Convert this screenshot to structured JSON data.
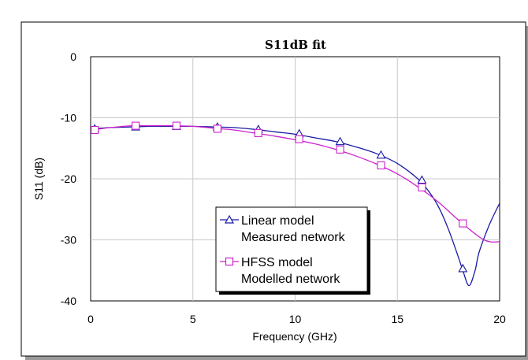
{
  "chart_data": {
    "type": "line",
    "title": "S11dB fit",
    "xlabel": "Frequency (GHz)",
    "ylabel": "S11 (dB)",
    "xlim": [
      0,
      20
    ],
    "ylim": [
      -40,
      0
    ],
    "x_ticks": [
      "0",
      "5",
      "10",
      "15",
      "20"
    ],
    "y_ticks": [
      "0",
      "-10",
      "-20",
      "-30",
      "-40"
    ],
    "grid": true,
    "legend_position": "bottom-center",
    "series": [
      {
        "name": "Linear model",
        "subname": "Measured network",
        "color": "#1a1aa6",
        "marker": "triangle",
        "x": [
          0,
          0.5,
          1,
          2,
          3,
          4,
          5,
          6,
          7,
          8,
          9,
          10,
          11,
          12,
          13,
          14,
          15,
          16,
          16.5,
          17,
          17.5,
          18,
          18.2,
          18.5,
          18.8,
          19,
          19.5,
          20
        ],
        "y": [
          -11.8,
          -11.7,
          -11.6,
          -11.5,
          -11.4,
          -11.4,
          -11.4,
          -11.5,
          -11.6,
          -11.9,
          -12.3,
          -12.7,
          -13.3,
          -13.9,
          -14.8,
          -15.9,
          -17.5,
          -20.0,
          -21.9,
          -24.5,
          -28.3,
          -33.0,
          -35.0,
          -37.5,
          -35.0,
          -32.0,
          -27.5,
          -24.0
        ],
        "marker_x": [
          0.2,
          2.2,
          4.2,
          6.2,
          8.2,
          10.2,
          12.2,
          14.2,
          16.2,
          18.2
        ],
        "marker_y": [
          -11.8,
          -11.5,
          -11.4,
          -11.5,
          -11.9,
          -12.6,
          -13.9,
          -16.1,
          -20.2,
          -34.7
        ]
      },
      {
        "name": "HFSS model",
        "subname": "Modelled network",
        "color": "#cc22cc",
        "marker": "square",
        "x": [
          0,
          0.5,
          1,
          2,
          3,
          4,
          5,
          6,
          7,
          8,
          9,
          10,
          11,
          12,
          13,
          14,
          15,
          16,
          17,
          18,
          19,
          19.5,
          20
        ],
        "y": [
          -12.1,
          -11.8,
          -11.6,
          -11.3,
          -11.3,
          -11.3,
          -11.4,
          -11.7,
          -12.0,
          -12.5,
          -13.0,
          -13.6,
          -14.3,
          -15.2,
          -16.3,
          -17.6,
          -19.2,
          -21.3,
          -23.8,
          -26.8,
          -29.5,
          -30.3,
          -30.3
        ],
        "marker_x": [
          0.2,
          2.2,
          4.2,
          6.2,
          8.2,
          10.2,
          12.2,
          14.2,
          16.2,
          18.2
        ],
        "marker_y": [
          -12.0,
          -11.3,
          -11.3,
          -11.8,
          -12.5,
          -13.5,
          -15.2,
          -17.8,
          -21.4,
          -27.3
        ]
      }
    ]
  }
}
